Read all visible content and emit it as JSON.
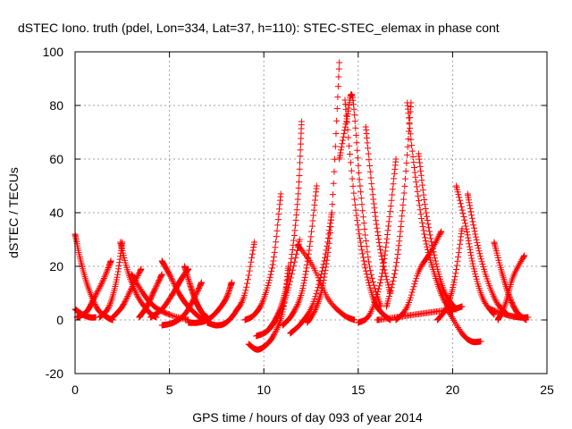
{
  "chart_data": {
    "type": "scatter",
    "title": "dSTEC Iono. truth (pdel, Lon=334, Lat=37, h=110): STEC-STEC_elemax in phase cont",
    "xlabel": "GPS time / hours of day 093 of year 2014",
    "ylabel": "dSTEC  / TECUs",
    "xlim": [
      0,
      25
    ],
    "ylim": [
      -20,
      100
    ],
    "x_ticks": [
      "0",
      "5",
      "10",
      "15",
      "20",
      "25"
    ],
    "y_ticks": [
      "-20",
      "0",
      "20",
      "40",
      "60",
      "80",
      "100"
    ],
    "grid": true,
    "legend": "none",
    "marker": "plus",
    "color": "#ff0000",
    "series": [
      {
        "x": [
          0.0,
          0.3,
          0.7,
          1.2,
          1.7,
          2.0
        ],
        "y": [
          32,
          22,
          12,
          4,
          1,
          0
        ]
      },
      {
        "x": [
          0.1,
          0.6,
          1.0,
          1.5,
          1.9
        ],
        "y": [
          1,
          3,
          8,
          15,
          22
        ]
      },
      {
        "x": [
          0.0,
          0.4,
          0.8,
          1.1
        ],
        "y": [
          4,
          2,
          1,
          1
        ]
      },
      {
        "x": [
          1.3,
          1.8,
          2.2,
          2.5
        ],
        "y": [
          1,
          5,
          15,
          29
        ]
      },
      {
        "x": [
          2.4,
          2.8,
          3.3,
          3.9,
          4.3
        ],
        "y": [
          29,
          18,
          9,
          3,
          1
        ]
      },
      {
        "x": [
          2.0,
          2.5,
          3.0,
          3.5
        ],
        "y": [
          1,
          5,
          12,
          19
        ]
      },
      {
        "x": [
          3.4,
          3.8,
          4.2,
          4.6
        ],
        "y": [
          1,
          5,
          11,
          17
        ]
      },
      {
        "x": [
          3.0,
          3.6,
          4.2,
          5.0,
          6.0
        ],
        "y": [
          17,
          10,
          5,
          2,
          0
        ]
      },
      {
        "x": [
          4.6,
          5.0,
          5.5,
          6.0,
          6.6,
          7.0
        ],
        "y": [
          22,
          17,
          10,
          5,
          1,
          0
        ]
      },
      {
        "x": [
          4.0,
          4.6,
          5.2,
          5.6,
          6.0
        ],
        "y": [
          1,
          4,
          10,
          15,
          19
        ]
      },
      {
        "x": [
          5.8,
          6.1,
          6.4,
          6.7,
          7.0
        ],
        "y": [
          20,
          13,
          7,
          3,
          1
        ]
      },
      {
        "x": [
          4.6,
          5.2,
          5.8,
          6.3,
          6.7
        ],
        "y": [
          -2,
          -1,
          2,
          8,
          14
        ]
      },
      {
        "x": [
          6.0,
          6.5,
          7.0,
          7.5,
          8.0,
          8.3
        ],
        "y": [
          -1,
          -1,
          0,
          3,
          8,
          14
        ]
      },
      {
        "x": [
          7.0,
          7.5,
          8.0,
          8.5,
          9.0,
          9.5
        ],
        "y": [
          -1,
          -2,
          -1,
          3,
          10,
          29
        ]
      },
      {
        "x": [
          9.0,
          9.5,
          10.0,
          10.5,
          10.9
        ],
        "y": [
          0,
          2,
          8,
          22,
          47
        ]
      },
      {
        "x": [
          9.2,
          9.6,
          10.0,
          10.5,
          11.0,
          11.3
        ],
        "y": [
          -9,
          -11,
          -10,
          -6,
          3,
          20
        ]
      },
      {
        "x": [
          9.6,
          10.2,
          10.8,
          11.3,
          11.9
        ],
        "y": [
          -6,
          -4,
          2,
          12,
          30
        ]
      },
      {
        "x": [
          10.2,
          10.6,
          11.0,
          11.4,
          11.8,
          12.0
        ],
        "y": [
          -4,
          0,
          7,
          20,
          45,
          74
        ]
      },
      {
        "x": [
          11.0,
          11.5,
          12.0,
          12.4,
          12.8
        ],
        "y": [
          -2,
          2,
          10,
          26,
          50
        ]
      },
      {
        "x": [
          11.4,
          12.0,
          12.6,
          13.2,
          13.6
        ],
        "y": [
          -5,
          -1,
          6,
          22,
          40
        ]
      },
      {
        "x": [
          12.3,
          12.8,
          13.2,
          13.6,
          14.0
        ],
        "y": [
          -1,
          5,
          16,
          40,
          96
        ]
      },
      {
        "x": [
          11.8,
          12.6,
          13.4,
          14.2,
          14.8
        ],
        "y": [
          28,
          20,
          8,
          2,
          0
        ]
      },
      {
        "x": [
          14.0,
          14.4,
          14.7,
          15.1,
          15.6,
          16.2
        ],
        "y": [
          60,
          75,
          83,
          50,
          20,
          5
        ]
      },
      {
        "x": [
          14.3,
          14.8,
          15.3,
          15.8,
          16.2,
          16.7
        ],
        "y": [
          82,
          45,
          22,
          8,
          3,
          0
        ]
      },
      {
        "x": [
          15.4,
          15.8,
          16.2,
          16.7
        ],
        "y": [
          72,
          45,
          25,
          10
        ]
      },
      {
        "x": [
          15.0,
          15.6,
          16.2,
          16.6,
          17.0
        ],
        "y": [
          -1,
          2,
          15,
          35,
          60
        ]
      },
      {
        "x": [
          16.5,
          17.0,
          17.4,
          17.8
        ],
        "y": [
          5,
          20,
          45,
          81
        ]
      },
      {
        "x": [
          17.6,
          18.0,
          18.5,
          19.0,
          19.5,
          20.0
        ],
        "y": [
          81,
          55,
          32,
          18,
          8,
          3
        ]
      },
      {
        "x": [
          18.2,
          18.6,
          19.1,
          19.6,
          20.2
        ],
        "y": [
          62,
          40,
          22,
          10,
          4
        ]
      },
      {
        "x": [
          17.0,
          17.6,
          18.2,
          18.8,
          19.4
        ],
        "y": [
          0,
          5,
          18,
          25,
          33
        ]
      },
      {
        "x": [
          16.0,
          17.0,
          18.0,
          19.0,
          20.0,
          20.5
        ],
        "y": [
          0,
          1,
          2,
          3,
          4,
          5
        ]
      },
      {
        "x": [
          19.2,
          19.7,
          20.1,
          20.5
        ],
        "y": [
          0,
          5,
          15,
          34
        ]
      },
      {
        "x": [
          20.2,
          20.7,
          21.1,
          21.6,
          22.2
        ],
        "y": [
          50,
          35,
          20,
          8,
          2
        ]
      },
      {
        "x": [
          20.8,
          21.2,
          21.7,
          22.3,
          22.9
        ],
        "y": [
          47,
          32,
          18,
          7,
          2
        ]
      },
      {
        "x": [
          19.8,
          20.5,
          21.0,
          21.5
        ],
        "y": [
          3,
          -5,
          -8,
          -8
        ]
      },
      {
        "x": [
          22.2,
          22.6,
          23.0,
          23.4,
          23.9
        ],
        "y": [
          29,
          18,
          9,
          3,
          0
        ]
      },
      {
        "x": [
          22.4,
          22.8,
          23.2,
          23.8
        ],
        "y": [
          0,
          6,
          16,
          24
        ]
      },
      {
        "x": [
          22.0,
          22.8,
          23.5,
          24.0
        ],
        "y": [
          4,
          2,
          1,
          1
        ]
      }
    ]
  }
}
